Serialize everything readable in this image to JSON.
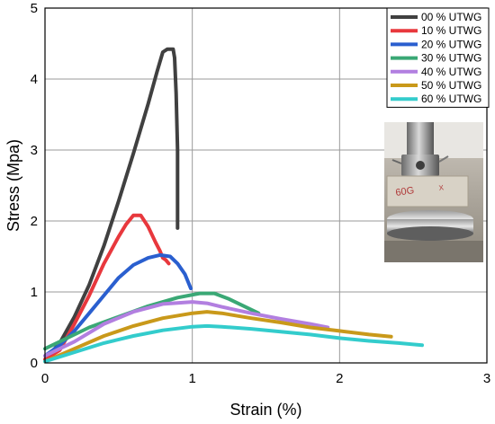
{
  "chart_data": {
    "type": "line",
    "xlabel": "Strain (%)",
    "ylabel": "Stress (Mpa)",
    "xlim": [
      0,
      3
    ],
    "ylim": [
      0,
      5
    ],
    "x_ticks": [
      0,
      1,
      2,
      3
    ],
    "y_ticks": [
      0,
      1,
      2,
      3,
      4,
      5
    ],
    "grid": true,
    "legend_position": "top-right",
    "inset_photo": "test-specimen-in-compression-machine",
    "series": [
      {
        "name": "00 % UTWG",
        "color": "#404040",
        "x": [
          0.0,
          0.1,
          0.2,
          0.3,
          0.4,
          0.5,
          0.6,
          0.7,
          0.76,
          0.8,
          0.83,
          0.87,
          0.88,
          0.89,
          0.9,
          0.9,
          0.9
        ],
        "y": [
          0.05,
          0.28,
          0.65,
          1.1,
          1.65,
          2.28,
          2.95,
          3.65,
          4.1,
          4.38,
          4.42,
          4.42,
          4.3,
          3.8,
          3.0,
          2.3,
          1.9
        ]
      },
      {
        "name": "10 % UTWG",
        "color": "#e8383d",
        "x": [
          0.0,
          0.1,
          0.2,
          0.3,
          0.4,
          0.5,
          0.55,
          0.6,
          0.65,
          0.7,
          0.75,
          0.78,
          0.8,
          0.82,
          0.84
        ],
        "y": [
          0.05,
          0.18,
          0.55,
          0.95,
          1.4,
          1.78,
          1.95,
          2.08,
          2.08,
          1.92,
          1.7,
          1.58,
          1.48,
          1.45,
          1.4
        ]
      },
      {
        "name": "20 % UTWG",
        "color": "#2a5fcf",
        "x": [
          0.0,
          0.1,
          0.2,
          0.3,
          0.4,
          0.5,
          0.6,
          0.7,
          0.78,
          0.85,
          0.9,
          0.95,
          0.99
        ],
        "y": [
          0.1,
          0.25,
          0.45,
          0.7,
          0.95,
          1.2,
          1.38,
          1.48,
          1.52,
          1.5,
          1.4,
          1.25,
          1.05
        ]
      },
      {
        "name": "30 % UTWG",
        "color": "#3aa875",
        "x": [
          0.0,
          0.1,
          0.3,
          0.5,
          0.7,
          0.9,
          1.05,
          1.15,
          1.25,
          1.35,
          1.45
        ],
        "y": [
          0.2,
          0.3,
          0.5,
          0.65,
          0.8,
          0.92,
          0.98,
          0.98,
          0.9,
          0.8,
          0.7
        ]
      },
      {
        "name": "40 % UTWG",
        "color": "#b27fe0",
        "x": [
          0.0,
          0.2,
          0.4,
          0.6,
          0.8,
          1.0,
          1.1,
          1.2,
          1.4,
          1.6,
          1.8,
          1.92
        ],
        "y": [
          0.1,
          0.3,
          0.55,
          0.72,
          0.83,
          0.86,
          0.84,
          0.79,
          0.7,
          0.62,
          0.55,
          0.5
        ]
      },
      {
        "name": "50 % UTWG",
        "color": "#c9991a",
        "x": [
          0.0,
          0.2,
          0.4,
          0.6,
          0.8,
          1.0,
          1.1,
          1.2,
          1.4,
          1.6,
          1.8,
          2.0,
          2.2,
          2.35
        ],
        "y": [
          0.02,
          0.2,
          0.38,
          0.52,
          0.63,
          0.7,
          0.72,
          0.7,
          0.63,
          0.57,
          0.5,
          0.45,
          0.4,
          0.37
        ]
      },
      {
        "name": "60 % UTWG",
        "color": "#33cccc",
        "x": [
          0.0,
          0.2,
          0.4,
          0.6,
          0.8,
          1.0,
          1.1,
          1.2,
          1.4,
          1.6,
          1.8,
          2.0,
          2.2,
          2.4,
          2.56
        ],
        "y": [
          0.02,
          0.15,
          0.28,
          0.38,
          0.46,
          0.51,
          0.52,
          0.51,
          0.48,
          0.44,
          0.4,
          0.35,
          0.31,
          0.28,
          0.25
        ]
      }
    ]
  }
}
